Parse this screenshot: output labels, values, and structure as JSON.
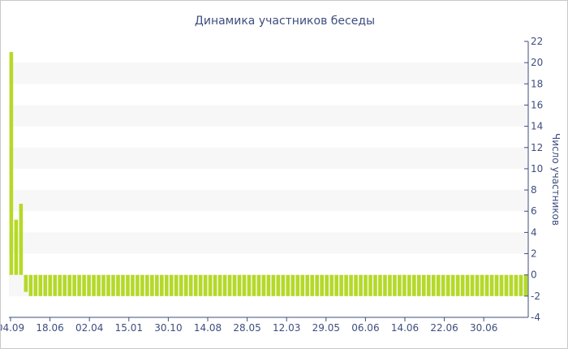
{
  "colors": {
    "bar": "#b5d927",
    "axis": "#3e4d7e",
    "band": "#f7f7f7",
    "text": "#3e4d7e"
  },
  "chart_data": {
    "type": "bar",
    "title": "Динамика участников беседы",
    "xlabel": "",
    "ylabel": "Число участников",
    "ylim": [
      -4,
      22
    ],
    "yticks": [
      -4,
      -2,
      0,
      2,
      4,
      6,
      8,
      10,
      12,
      14,
      16,
      18,
      20,
      22
    ],
    "xtick_labels": [
      "04.09",
      "18.06",
      "02.04",
      "15.01",
      "30.10",
      "14.08",
      "28.05",
      "12.03",
      "29.05",
      "06.06",
      "14.06",
      "22.06",
      "30.06"
    ],
    "values": [
      21,
      5.2,
      6.7,
      -1.6,
      -2,
      -2,
      -2,
      -2,
      -2,
      -2,
      -2,
      -2,
      -2,
      -2,
      -2,
      -2,
      -2,
      -2,
      -2,
      -2,
      -2,
      -2,
      -2,
      -2,
      -2,
      -2,
      -2,
      -2,
      -2,
      -2,
      -2,
      -2,
      -2,
      -2,
      -2,
      -2,
      -2,
      -2,
      -2,
      -2,
      -2,
      -2,
      -2,
      -2,
      -2,
      -2,
      -2,
      -2,
      -2,
      -2,
      -2,
      -2,
      -2,
      -2,
      -2,
      -2,
      -2,
      -2,
      -2,
      -2,
      -2,
      -2,
      -2,
      -2,
      -2,
      -2,
      -2,
      -2,
      -2,
      -2,
      -2,
      -2,
      -2,
      -2,
      -2,
      -2,
      -2,
      -2,
      -2,
      -2,
      -2,
      -2,
      -2,
      -2,
      -2,
      -2,
      -2,
      -2,
      -2,
      -2,
      -2,
      -2,
      -2,
      -2,
      -2,
      -2,
      -2,
      -2,
      -2,
      -2,
      -2,
      -2,
      -2,
      -2,
      -2,
      -2,
      -2
    ],
    "grid": "alternating-bands",
    "legend": "none"
  }
}
